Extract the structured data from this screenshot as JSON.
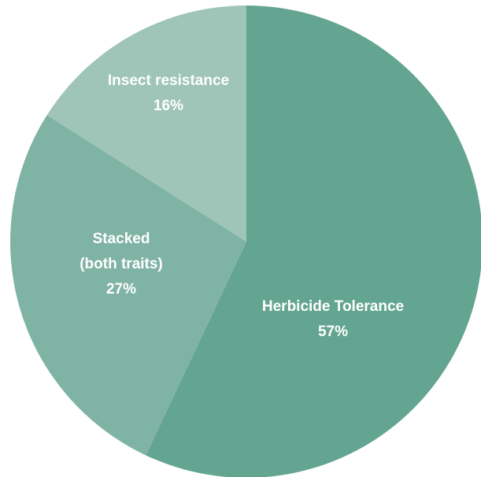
{
  "chart_data": {
    "type": "pie",
    "start_angle_deg": 0,
    "direction": "clockwise",
    "slices": [
      {
        "label": [
          "Herbicide Tolerance"
        ],
        "percent_label": "57%",
        "value": 57,
        "color": "#63a590"
      },
      {
        "label": [
          "Stacked",
          "(both traits)"
        ],
        "percent_label": "27%",
        "value": 27,
        "color": "#7fb3a4"
      },
      {
        "label": [
          "Insect resistance"
        ],
        "percent_label": "16%",
        "value": 16,
        "color": "#9fc4b8"
      }
    ]
  }
}
